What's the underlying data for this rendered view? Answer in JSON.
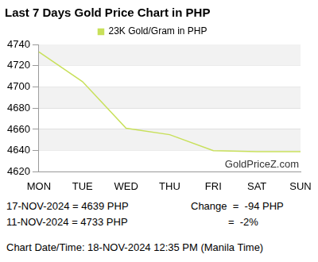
{
  "chart_data": {
    "type": "line",
    "title": "Last 7 Days Gold Price Chart in PHP",
    "categories": [
      "MON",
      "TUE",
      "WED",
      "THU",
      "FRI",
      "SAT",
      "SUN"
    ],
    "series": [
      {
        "name": "23K Gold/Gram in PHP",
        "color": "#c8e05a",
        "values": [
          4733,
          4705,
          4661,
          4655,
          4640,
          4639,
          4639
        ]
      }
    ],
    "ylim": [
      4620,
      4740
    ],
    "yticks": [
      4620,
      4640,
      4660,
      4680,
      4700,
      4720,
      4740
    ],
    "grid": true,
    "legend": "top",
    "annotations": {
      "watermark": "GoldPriceZ.com",
      "summary": [
        [
          "17-NOV-2024 = 4639 PHP",
          "Change  =  -94 PHP"
        ],
        [
          "11-NOV-2024 = 4733 PHP",
          "             =  -2%"
        ]
      ],
      "chart_date": "Chart Date/Time: 18-NOV-2024 12:35 PM (Manila Time)"
    }
  }
}
